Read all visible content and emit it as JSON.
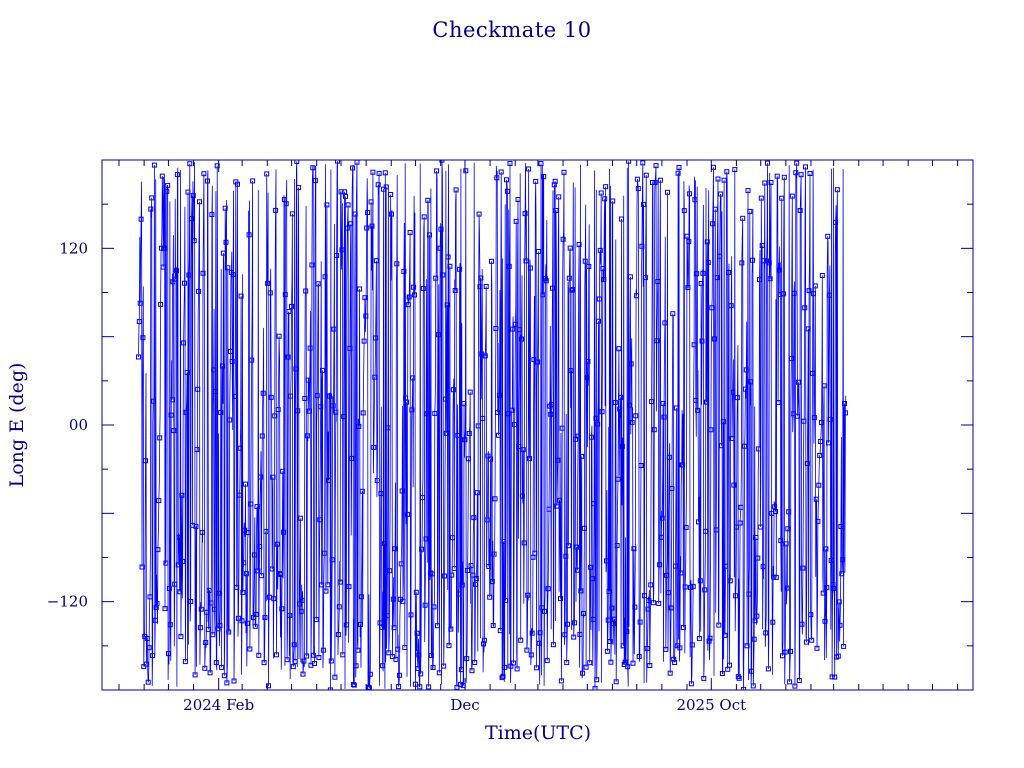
{
  "chart_data": {
    "type": "line",
    "title": "Checkmate 10",
    "xlabel": "Time(UTC)",
    "ylabel": "Long E (deg)",
    "ylim": [
      -180,
      180
    ],
    "xlim": [
      "2023-09-10",
      "2026-08-20"
    ],
    "y_ticks": [
      {
        "value": 120,
        "label": "120"
      },
      {
        "value": 0,
        "label": "00"
      },
      {
        "value": -120,
        "label": "−120"
      }
    ],
    "x_ticks": [
      {
        "value": "2024-02-01",
        "label": "2024 Feb"
      },
      {
        "value": "2024-12-01",
        "label": "Dec"
      },
      {
        "value": "2025-10-01",
        "label": "2025 Oct"
      }
    ],
    "data_range": [
      "2023-10-25",
      "2026-03-16"
    ],
    "markers": "open-square",
    "grid": false,
    "legend": "none",
    "colors": {
      "series": "#0000ff",
      "text": "#00008b",
      "axis": "#00008b"
    }
  }
}
